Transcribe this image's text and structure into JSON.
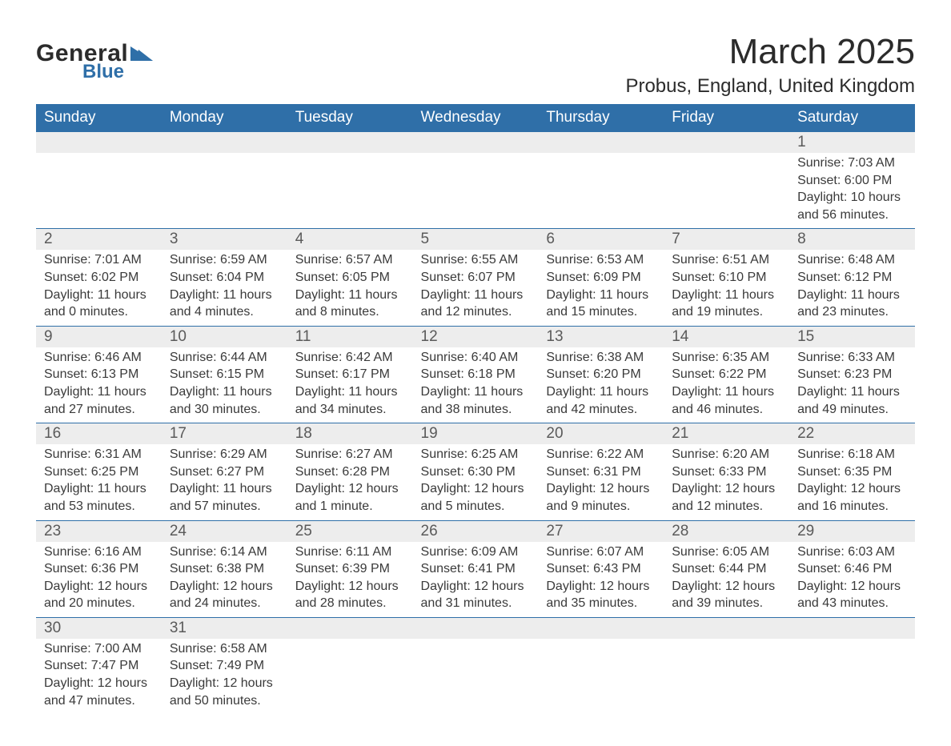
{
  "logo": {
    "word1": "General",
    "word2": "Blue",
    "tri_color": "#2f6fa8"
  },
  "title": "March 2025",
  "subtitle": "Probus, England, United Kingdom",
  "colors": {
    "header_bg": "#2f6fa8",
    "header_fg": "#ffffff",
    "daynum_bg": "#ededed",
    "text": "#3a3a3a",
    "border": "#2f6fa8"
  },
  "font_sizes": {
    "title": 44,
    "subtitle": 24,
    "dayhdr": 19,
    "daynum": 19,
    "cell": 16
  },
  "day_headers": [
    "Sunday",
    "Monday",
    "Tuesday",
    "Wednesday",
    "Thursday",
    "Friday",
    "Saturday"
  ],
  "weeks": [
    [
      null,
      null,
      null,
      null,
      null,
      null,
      {
        "n": "1",
        "sr": "Sunrise: 7:03 AM",
        "ss": "Sunset: 6:00 PM",
        "d1": "Daylight: 10 hours",
        "d2": "and 56 minutes."
      }
    ],
    [
      {
        "n": "2",
        "sr": "Sunrise: 7:01 AM",
        "ss": "Sunset: 6:02 PM",
        "d1": "Daylight: 11 hours",
        "d2": "and 0 minutes."
      },
      {
        "n": "3",
        "sr": "Sunrise: 6:59 AM",
        "ss": "Sunset: 6:04 PM",
        "d1": "Daylight: 11 hours",
        "d2": "and 4 minutes."
      },
      {
        "n": "4",
        "sr": "Sunrise: 6:57 AM",
        "ss": "Sunset: 6:05 PM",
        "d1": "Daylight: 11 hours",
        "d2": "and 8 minutes."
      },
      {
        "n": "5",
        "sr": "Sunrise: 6:55 AM",
        "ss": "Sunset: 6:07 PM",
        "d1": "Daylight: 11 hours",
        "d2": "and 12 minutes."
      },
      {
        "n": "6",
        "sr": "Sunrise: 6:53 AM",
        "ss": "Sunset: 6:09 PM",
        "d1": "Daylight: 11 hours",
        "d2": "and 15 minutes."
      },
      {
        "n": "7",
        "sr": "Sunrise: 6:51 AM",
        "ss": "Sunset: 6:10 PM",
        "d1": "Daylight: 11 hours",
        "d2": "and 19 minutes."
      },
      {
        "n": "8",
        "sr": "Sunrise: 6:48 AM",
        "ss": "Sunset: 6:12 PM",
        "d1": "Daylight: 11 hours",
        "d2": "and 23 minutes."
      }
    ],
    [
      {
        "n": "9",
        "sr": "Sunrise: 6:46 AM",
        "ss": "Sunset: 6:13 PM",
        "d1": "Daylight: 11 hours",
        "d2": "and 27 minutes."
      },
      {
        "n": "10",
        "sr": "Sunrise: 6:44 AM",
        "ss": "Sunset: 6:15 PM",
        "d1": "Daylight: 11 hours",
        "d2": "and 30 minutes."
      },
      {
        "n": "11",
        "sr": "Sunrise: 6:42 AM",
        "ss": "Sunset: 6:17 PM",
        "d1": "Daylight: 11 hours",
        "d2": "and 34 minutes."
      },
      {
        "n": "12",
        "sr": "Sunrise: 6:40 AM",
        "ss": "Sunset: 6:18 PM",
        "d1": "Daylight: 11 hours",
        "d2": "and 38 minutes."
      },
      {
        "n": "13",
        "sr": "Sunrise: 6:38 AM",
        "ss": "Sunset: 6:20 PM",
        "d1": "Daylight: 11 hours",
        "d2": "and 42 minutes."
      },
      {
        "n": "14",
        "sr": "Sunrise: 6:35 AM",
        "ss": "Sunset: 6:22 PM",
        "d1": "Daylight: 11 hours",
        "d2": "and 46 minutes."
      },
      {
        "n": "15",
        "sr": "Sunrise: 6:33 AM",
        "ss": "Sunset: 6:23 PM",
        "d1": "Daylight: 11 hours",
        "d2": "and 49 minutes."
      }
    ],
    [
      {
        "n": "16",
        "sr": "Sunrise: 6:31 AM",
        "ss": "Sunset: 6:25 PM",
        "d1": "Daylight: 11 hours",
        "d2": "and 53 minutes."
      },
      {
        "n": "17",
        "sr": "Sunrise: 6:29 AM",
        "ss": "Sunset: 6:27 PM",
        "d1": "Daylight: 11 hours",
        "d2": "and 57 minutes."
      },
      {
        "n": "18",
        "sr": "Sunrise: 6:27 AM",
        "ss": "Sunset: 6:28 PM",
        "d1": "Daylight: 12 hours",
        "d2": "and 1 minute."
      },
      {
        "n": "19",
        "sr": "Sunrise: 6:25 AM",
        "ss": "Sunset: 6:30 PM",
        "d1": "Daylight: 12 hours",
        "d2": "and 5 minutes."
      },
      {
        "n": "20",
        "sr": "Sunrise: 6:22 AM",
        "ss": "Sunset: 6:31 PM",
        "d1": "Daylight: 12 hours",
        "d2": "and 9 minutes."
      },
      {
        "n": "21",
        "sr": "Sunrise: 6:20 AM",
        "ss": "Sunset: 6:33 PM",
        "d1": "Daylight: 12 hours",
        "d2": "and 12 minutes."
      },
      {
        "n": "22",
        "sr": "Sunrise: 6:18 AM",
        "ss": "Sunset: 6:35 PM",
        "d1": "Daylight: 12 hours",
        "d2": "and 16 minutes."
      }
    ],
    [
      {
        "n": "23",
        "sr": "Sunrise: 6:16 AM",
        "ss": "Sunset: 6:36 PM",
        "d1": "Daylight: 12 hours",
        "d2": "and 20 minutes."
      },
      {
        "n": "24",
        "sr": "Sunrise: 6:14 AM",
        "ss": "Sunset: 6:38 PM",
        "d1": "Daylight: 12 hours",
        "d2": "and 24 minutes."
      },
      {
        "n": "25",
        "sr": "Sunrise: 6:11 AM",
        "ss": "Sunset: 6:39 PM",
        "d1": "Daylight: 12 hours",
        "d2": "and 28 minutes."
      },
      {
        "n": "26",
        "sr": "Sunrise: 6:09 AM",
        "ss": "Sunset: 6:41 PM",
        "d1": "Daylight: 12 hours",
        "d2": "and 31 minutes."
      },
      {
        "n": "27",
        "sr": "Sunrise: 6:07 AM",
        "ss": "Sunset: 6:43 PM",
        "d1": "Daylight: 12 hours",
        "d2": "and 35 minutes."
      },
      {
        "n": "28",
        "sr": "Sunrise: 6:05 AM",
        "ss": "Sunset: 6:44 PM",
        "d1": "Daylight: 12 hours",
        "d2": "and 39 minutes."
      },
      {
        "n": "29",
        "sr": "Sunrise: 6:03 AM",
        "ss": "Sunset: 6:46 PM",
        "d1": "Daylight: 12 hours",
        "d2": "and 43 minutes."
      }
    ],
    [
      {
        "n": "30",
        "sr": "Sunrise: 7:00 AM",
        "ss": "Sunset: 7:47 PM",
        "d1": "Daylight: 12 hours",
        "d2": "and 47 minutes."
      },
      {
        "n": "31",
        "sr": "Sunrise: 6:58 AM",
        "ss": "Sunset: 7:49 PM",
        "d1": "Daylight: 12 hours",
        "d2": "and 50 minutes."
      },
      null,
      null,
      null,
      null,
      null
    ]
  ]
}
